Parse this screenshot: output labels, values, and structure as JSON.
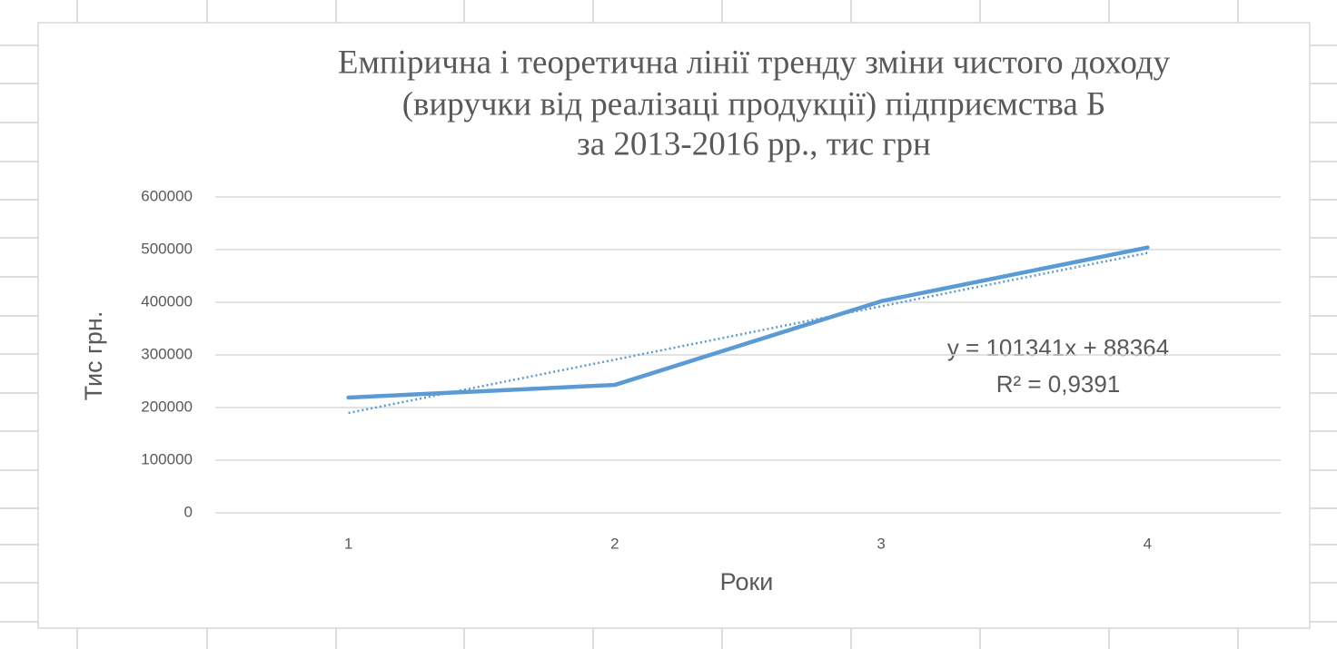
{
  "chart_data": {
    "type": "line",
    "title": [
      "Емпірична і теоретична лінії тренду зміни чистого доходу",
      "(виручки від реалізаці продукції) підприємства Б",
      "за 2013-2016 рр., тис грн"
    ],
    "x_label": "Роки",
    "y_label": "Тис грн.",
    "categories": [
      "1",
      "2",
      "3",
      "4"
    ],
    "series": [
      {
        "color": "#5b9bd5",
        "values": [
          219000,
          243000,
          402000,
          504000
        ]
      }
    ],
    "trendline": {
      "color": "#5b9bd5",
      "values": [
        189705,
        291046,
        392387,
        493728
      ],
      "annotation": [
        "y = 101341x + 88364",
        "R² = 0,9391"
      ]
    },
    "ylim": [
      0,
      600000
    ],
    "yticks": [
      0,
      100000,
      200000,
      300000,
      400000,
      500000,
      600000
    ],
    "grid": true
  }
}
